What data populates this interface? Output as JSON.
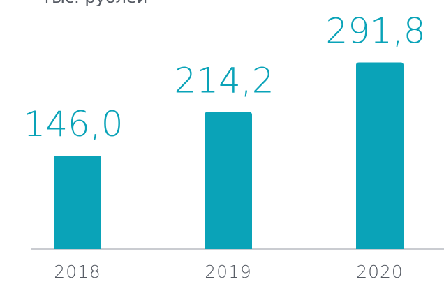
{
  "chart_data": {
    "type": "bar",
    "subtitle": "тыс. рублей",
    "categories": [
      "2018",
      "2019",
      "2020"
    ],
    "values": [
      146.0,
      214.2,
      291.8
    ],
    "value_labels": [
      "146,0",
      "214,2",
      "291,8"
    ],
    "color": "#0aa3b8",
    "ylim": [
      0,
      300
    ]
  }
}
